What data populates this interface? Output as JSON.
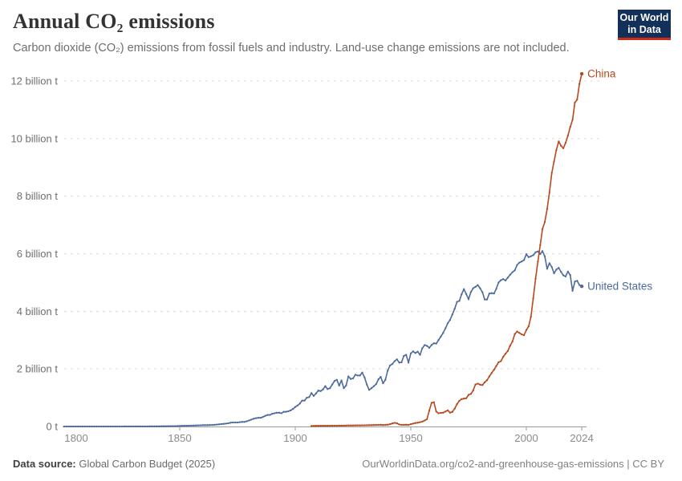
{
  "header": {
    "title": "Annual CO₂ emissions",
    "subtitle": "Carbon dioxide (CO₂) emissions from fossil fuels and industry. Land-use change emissions are not included.",
    "logo": {
      "line1": "Our World",
      "line2": "in Data",
      "bg_color": "#12305A",
      "accent_color": "#CE2C19"
    }
  },
  "footer": {
    "source_label": "Data source:",
    "source_value": " Global Carbon Budget (2025)",
    "attribution": "OurWorldinData.org/co2-and-greenhouse-gas-emissions | CC BY"
  },
  "chart_data": {
    "type": "line",
    "title": "Annual CO₂ emissions",
    "unit": "billion tonnes of CO₂ per year",
    "xlabel": "",
    "ylabel": "",
    "xlim": [
      1800,
      2024
    ],
    "ylim": [
      0,
      12.4
    ],
    "grid": true,
    "grid_style": "dashed",
    "legend_position": "end-of-line-labels",
    "colors": {
      "grid": "#dcdcdc",
      "axis": "#9a9a9a",
      "tick_label": "#8b8b8b",
      "y_label": "#6f6f6f"
    },
    "y_ticks": [
      {
        "value": 0,
        "label": "0 t"
      },
      {
        "value": 2,
        "label": "2 billion t"
      },
      {
        "value": 4,
        "label": "4 billion t"
      },
      {
        "value": 6,
        "label": "6 billion t"
      },
      {
        "value": 8,
        "label": "8 billion t"
      },
      {
        "value": 10,
        "label": "10 billion t"
      },
      {
        "value": 12,
        "label": "12 billion t"
      }
    ],
    "x_ticks": [
      {
        "value": 1800,
        "label": "1800"
      },
      {
        "value": 1850,
        "label": "1850"
      },
      {
        "value": 1900,
        "label": "1900"
      },
      {
        "value": 1950,
        "label": "1950"
      },
      {
        "value": 2000,
        "label": "2000"
      },
      {
        "value": 2024,
        "label": "2024"
      }
    ],
    "series": [
      {
        "name": "United States",
        "end_label": "United States",
        "color": "#4C6A9C",
        "start_year": 1800,
        "unit": "billion t",
        "values": [
          0.0003,
          0.0003,
          0.0003,
          0.0003,
          0.0004,
          0.0004,
          0.0004,
          0.0004,
          0.0004,
          0.0004,
          0.0004,
          0.0005,
          0.0005,
          0.0005,
          0.0006,
          0.0006,
          0.0006,
          0.0007,
          0.0007,
          0.0008,
          0.0008,
          0.0009,
          0.001,
          0.0011,
          0.0012,
          0.0013,
          0.0014,
          0.0016,
          0.0017,
          0.0019,
          0.0024,
          0.0026,
          0.0028,
          0.003,
          0.0033,
          0.0036,
          0.004,
          0.0043,
          0.0047,
          0.0052,
          0.006,
          0.0065,
          0.007,
          0.008,
          0.009,
          0.01,
          0.011,
          0.013,
          0.015,
          0.017,
          0.02,
          0.022,
          0.024,
          0.026,
          0.029,
          0.031,
          0.034,
          0.037,
          0.04,
          0.043,
          0.047,
          0.048,
          0.046,
          0.05,
          0.054,
          0.059,
          0.066,
          0.074,
          0.083,
          0.093,
          0.1,
          0.11,
          0.13,
          0.14,
          0.14,
          0.14,
          0.15,
          0.16,
          0.16,
          0.18,
          0.21,
          0.24,
          0.27,
          0.29,
          0.3,
          0.3,
          0.33,
          0.37,
          0.4,
          0.4,
          0.44,
          0.46,
          0.48,
          0.48,
          0.46,
          0.51,
          0.51,
          0.53,
          0.56,
          0.61,
          0.68,
          0.73,
          0.8,
          0.9,
          0.9,
          1.0,
          1.02,
          1.16,
          1.06,
          1.15,
          1.25,
          1.23,
          1.29,
          1.4,
          1.3,
          1.33,
          1.46,
          1.58,
          1.62,
          1.42,
          1.6,
          1.33,
          1.42,
          1.74,
          1.65,
          1.67,
          1.8,
          1.77,
          1.77,
          1.87,
          1.7,
          1.45,
          1.27,
          1.33,
          1.4,
          1.47,
          1.64,
          1.72,
          1.5,
          1.62,
          1.94,
          2.12,
          2.17,
          2.27,
          2.33,
          2.22,
          2.23,
          2.45,
          2.49,
          2.22,
          2.54,
          2.61,
          2.55,
          2.6,
          2.49,
          2.72,
          2.83,
          2.8,
          2.73,
          2.83,
          2.89,
          2.88,
          3.0,
          3.12,
          3.25,
          3.41,
          3.59,
          3.7,
          3.89,
          4.09,
          4.33,
          4.36,
          4.59,
          4.77,
          4.6,
          4.42,
          4.67,
          4.8,
          4.85,
          4.91,
          4.8,
          4.66,
          4.41,
          4.41,
          4.62,
          4.63,
          4.62,
          4.78,
          5.0,
          5.08,
          5.12,
          5.07,
          5.17,
          5.27,
          5.36,
          5.42,
          5.61,
          5.69,
          5.73,
          5.78,
          5.98,
          5.88,
          5.91,
          5.95,
          6.05,
          6.08,
          5.99,
          6.09,
          5.91,
          5.48,
          5.67,
          5.54,
          5.32,
          5.45,
          5.51,
          5.37,
          5.25,
          5.21,
          5.38,
          5.26,
          4.71,
          5.03,
          5.06,
          4.91,
          4.87
        ]
      },
      {
        "name": "China",
        "end_label": "China",
        "color": "#B8481E",
        "start_year": 1907,
        "unit": "billion t",
        "values": [
          0.019,
          0.02,
          0.021,
          0.022,
          0.023,
          0.024,
          0.025,
          0.026,
          0.026,
          0.027,
          0.028,
          0.029,
          0.03,
          0.03,
          0.031,
          0.033,
          0.035,
          0.036,
          0.037,
          0.038,
          0.039,
          0.04,
          0.042,
          0.043,
          0.044,
          0.046,
          0.048,
          0.05,
          0.053,
          0.056,
          0.059,
          0.05,
          0.055,
          0.062,
          0.08,
          0.105,
          0.125,
          0.11,
          0.07,
          0.055,
          0.058,
          0.06,
          0.057,
          0.08,
          0.1,
          0.12,
          0.13,
          0.15,
          0.17,
          0.21,
          0.25,
          0.55,
          0.82,
          0.84,
          0.52,
          0.46,
          0.47,
          0.48,
          0.52,
          0.56,
          0.48,
          0.51,
          0.62,
          0.78,
          0.89,
          0.95,
          0.97,
          0.98,
          1.1,
          1.13,
          1.25,
          1.46,
          1.49,
          1.45,
          1.44,
          1.53,
          1.61,
          1.74,
          1.86,
          1.97,
          2.1,
          2.23,
          2.27,
          2.42,
          2.53,
          2.62,
          2.81,
          2.95,
          3.21,
          3.3,
          3.25,
          3.2,
          3.17,
          3.35,
          3.48,
          3.81,
          4.45,
          5.13,
          5.73,
          6.3,
          6.86,
          7.1,
          7.55,
          8.13,
          8.8,
          9.2,
          9.6,
          9.9,
          9.75,
          9.66,
          9.85,
          10.1,
          10.4,
          10.65,
          11.25,
          11.35,
          11.9,
          12.25
        ]
      }
    ]
  }
}
